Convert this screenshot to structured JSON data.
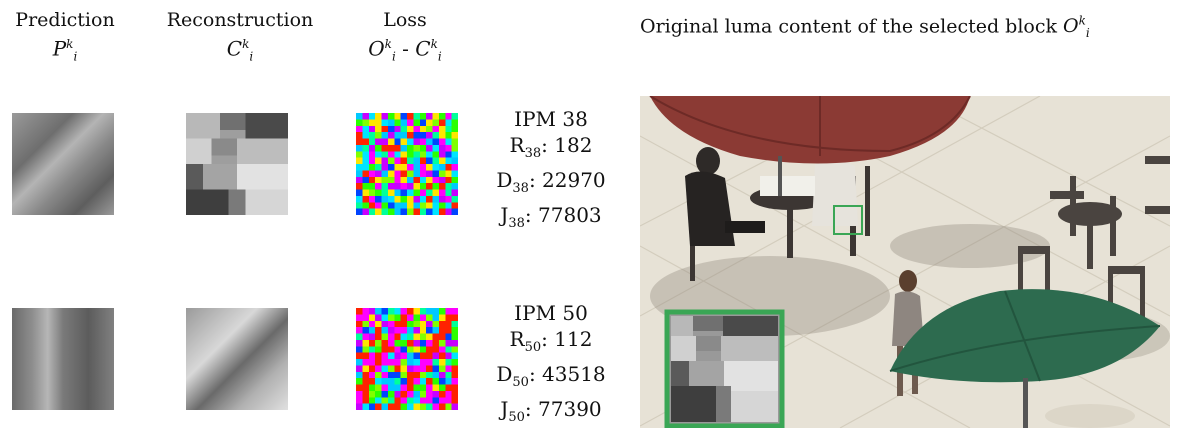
{
  "headers": {
    "prediction": {
      "title": "Prediction",
      "symbol": "P",
      "sup": "k",
      "sub": "i"
    },
    "reconstruction": {
      "title": "Reconstruction",
      "symbol": "C",
      "sup": "k",
      "sub": "i"
    },
    "loss": {
      "title": "Loss",
      "symbol_a": "O",
      "symbol_b": "C",
      "sup": "k",
      "sub": "i",
      "minus": " - "
    }
  },
  "rows": [
    {
      "ipm": "IPM 38",
      "r_letter": "R",
      "d_letter": "D",
      "j_letter": "J",
      "idx": "38",
      "r": ": 182",
      "d": ": 22970",
      "j": ": 77803"
    },
    {
      "ipm": "IPM 50",
      "r_letter": "R",
      "d_letter": "D",
      "j_letter": "J",
      "idx": "50",
      "r": ": 112",
      "d": ": 43518",
      "j": ": 77390"
    }
  ],
  "right": {
    "title": "Original luma content of the selected block ",
    "symbol": "O",
    "sup": "k",
    "sub": "i"
  },
  "colors": {
    "highlight": "#3aa655",
    "umbrella_red": "#8e3a34",
    "umbrella_green": "#2c6b4e",
    "pavement": "#e8e3d8"
  }
}
